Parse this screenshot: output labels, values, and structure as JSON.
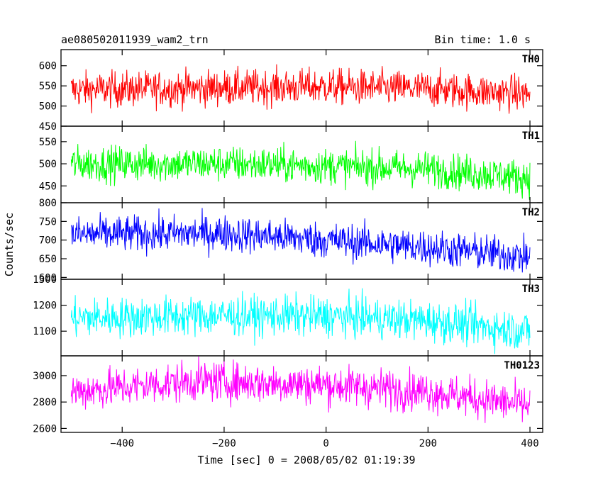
{
  "chart_data": {
    "type": "line",
    "title": "ae080502011939_wam2_trn",
    "subtitle": "Bin time: 1.0 s",
    "xlabel": "Time [sec] 0 = 2008/05/02 01:19:39",
    "ylabel": "Counts/sec",
    "xlim": [
      -520,
      425
    ],
    "x_start": -500,
    "x_end": 400,
    "x_ticks": [
      -400,
      -200,
      0,
      200,
      400
    ],
    "grid": false,
    "panels": [
      {
        "name": "TH0",
        "color": "#ff0000",
        "ylim": [
          450,
          640
        ],
        "y_ticks": [
          450,
          500,
          550,
          600
        ],
        "trend": [
          [
            -500,
            540
          ],
          [
            -200,
            545
          ],
          [
            0,
            548
          ],
          [
            200,
            542
          ],
          [
            400,
            530
          ]
        ],
        "noise_amplitude": 22
      },
      {
        "name": "TH1",
        "color": "#00ff00",
        "ylim": [
          412,
          585
        ],
        "y_ticks": [
          450,
          500,
          550
        ],
        "trend": [
          [
            -500,
            500
          ],
          [
            -200,
            500
          ],
          [
            0,
            495
          ],
          [
            200,
            488
          ],
          [
            400,
            468
          ]
        ],
        "noise_amplitude": 20
      },
      {
        "name": "TH2",
        "color": "#0000ff",
        "ylim": [
          595,
          800
        ],
        "y_ticks": [
          600,
          650,
          700,
          750,
          800
        ],
        "trend": [
          [
            -500,
            715
          ],
          [
            -200,
            718
          ],
          [
            0,
            700
          ],
          [
            200,
            680
          ],
          [
            400,
            655
          ]
        ],
        "noise_amplitude": 24
      },
      {
        "name": "TH3",
        "color": "#00ffff",
        "ylim": [
          1005,
          1300
        ],
        "y_ticks": [
          1100,
          1200,
          1300
        ],
        "trend": [
          [
            -500,
            1150
          ],
          [
            -200,
            1160
          ],
          [
            0,
            1158
          ],
          [
            200,
            1140
          ],
          [
            400,
            1100
          ]
        ],
        "noise_amplitude": 38
      },
      {
        "name": "TH0123",
        "color": "#ff00ff",
        "ylim": [
          2570,
          3150
        ],
        "y_ticks": [
          2600,
          2800,
          3000
        ],
        "trend": [
          [
            -500,
            2880
          ],
          [
            -250,
            2960
          ],
          [
            0,
            2930
          ],
          [
            200,
            2880
          ],
          [
            400,
            2770
          ]
        ],
        "noise_amplitude": 75
      }
    ]
  }
}
